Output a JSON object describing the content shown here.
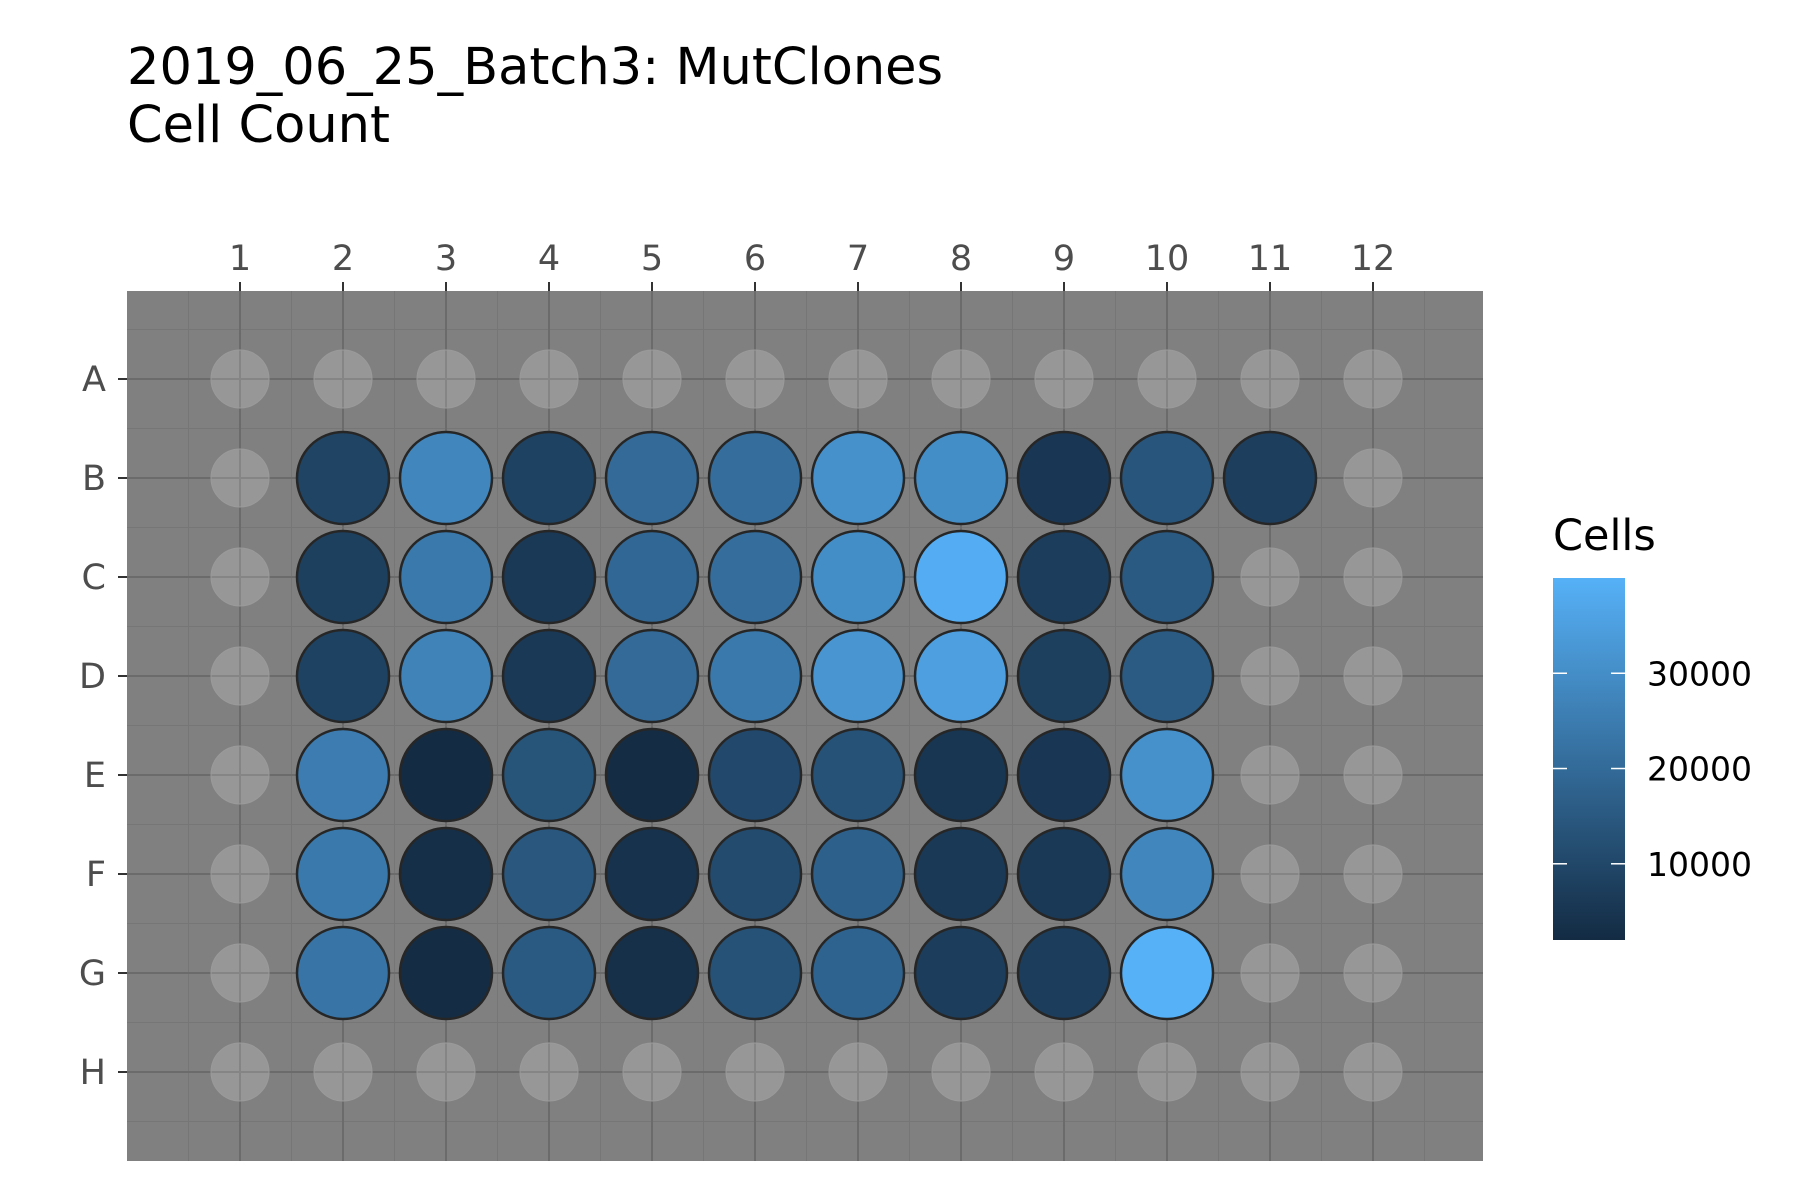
{
  "chart_data": {
    "type": "heatmap",
    "title": "2019_06_25_Batch3: MutClones",
    "subtitle": "Cell Count",
    "columns": [
      "1",
      "2",
      "3",
      "4",
      "5",
      "6",
      "7",
      "8",
      "9",
      "10",
      "11",
      "12"
    ],
    "rows": [
      "A",
      "B",
      "C",
      "D",
      "E",
      "F",
      "G",
      "H"
    ],
    "values": [
      [
        null,
        null,
        null,
        null,
        null,
        null,
        null,
        null,
        null,
        null,
        null,
        null
      ],
      [
        null,
        9000,
        28000,
        8500,
        20000,
        21000,
        31000,
        30000,
        5500,
        14000,
        7500,
        null
      ],
      [
        null,
        8000,
        24000,
        6000,
        19000,
        21000,
        30000,
        39000,
        7000,
        15000,
        null,
        null
      ],
      [
        null,
        8500,
        27000,
        6000,
        20000,
        24000,
        32000,
        35000,
        8000,
        15500,
        null,
        null
      ],
      [
        null,
        25000,
        2000,
        13500,
        2500,
        10500,
        13000,
        5000,
        5500,
        31000,
        null,
        null
      ],
      [
        null,
        24000,
        3000,
        14500,
        4000,
        11000,
        17000,
        6000,
        6000,
        28000,
        null,
        null
      ],
      [
        null,
        23000,
        2500,
        15000,
        3500,
        13000,
        18000,
        7000,
        7000,
        40000,
        null,
        null
      ],
      [
        null,
        null,
        null,
        null,
        null,
        null,
        null,
        null,
        null,
        null,
        null,
        null
      ]
    ],
    "legend": {
      "title": "Cells",
      "min": 2000,
      "max": 40000,
      "ticks": [
        10000,
        20000,
        30000
      ],
      "tick_labels": [
        "10000",
        "20000",
        "30000"
      ],
      "color_low": "#132B43",
      "color_high": "#56B1F7",
      "placement": "right"
    },
    "empty_well_color": "#ffffff",
    "panel_background": "#808080",
    "grid": true
  }
}
